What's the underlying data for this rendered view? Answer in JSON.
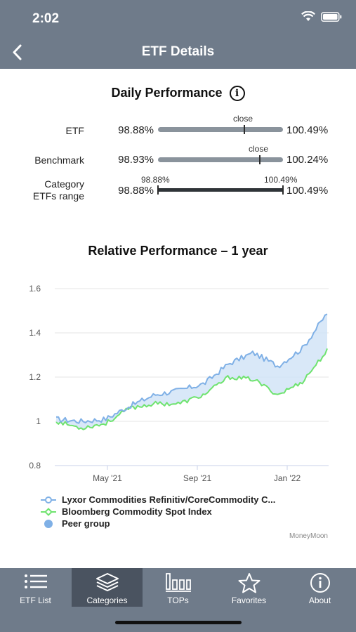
{
  "status_bar": {
    "time": "2:02"
  },
  "nav": {
    "title": "ETF Details",
    "back_icon": "chevron-left-icon"
  },
  "daily": {
    "title": "Daily Performance",
    "info_glyph": "i",
    "rows": [
      {
        "label": "ETF",
        "low": "98.88%",
        "high": "100.49%",
        "marker_label": "close",
        "marker_fraction": 0.69
      },
      {
        "label": "Benchmark",
        "low": "98.93%",
        "high": "100.24%",
        "marker_label": "close",
        "marker_fraction": 0.81
      },
      {
        "label_line1": "Category",
        "label_line2": "ETFs range",
        "low": "98.88%",
        "high": "100.49%",
        "top_low": "98.88%",
        "top_high": "100.49%"
      }
    ]
  },
  "relative": {
    "title": "Relative Performance – 1 year"
  },
  "chart_data": {
    "type": "line",
    "y_ticks": [
      "1.6",
      "1.4",
      "1.2",
      "1",
      "0.8"
    ],
    "x_ticks": [
      "May '21",
      "Sep '21",
      "Jan '22"
    ],
    "ylim": [
      0.8,
      1.6
    ],
    "x": [
      "Mar '21",
      "Apr '21",
      "May '21",
      "Jun '21",
      "Jul '21",
      "Aug '21",
      "Sep '21",
      "Oct '21",
      "Nov '21",
      "Dec '21",
      "Jan '22",
      "Feb '22"
    ],
    "series": [
      {
        "name": "Lyxor Commodities Refinitiv/CoreCommodity C...",
        "color": "#7fb0e6",
        "marker": "circle",
        "values": [
          1.01,
          1.0,
          1.01,
          1.07,
          1.12,
          1.14,
          1.17,
          1.26,
          1.31,
          1.25,
          1.33,
          1.49
        ]
      },
      {
        "name": "Bloomberg Commodity Spot Index",
        "color": "#6fe36f",
        "marker": "diamond",
        "values": [
          1.0,
          0.97,
          0.99,
          1.06,
          1.08,
          1.08,
          1.12,
          1.2,
          1.19,
          1.12,
          1.18,
          1.32
        ]
      }
    ],
    "band": {
      "name": "Peer group",
      "color": "#cfe2f6",
      "marker": "dot"
    },
    "credit": "MoneyMoon"
  },
  "tabs": [
    {
      "label": "ETF List",
      "icon": "list-icon"
    },
    {
      "label": "Categories",
      "icon": "layers-icon",
      "active": true
    },
    {
      "label": "TOPs",
      "icon": "bar-chart-icon"
    },
    {
      "label": "Favorites",
      "icon": "star-icon"
    },
    {
      "label": "About",
      "icon": "info-icon"
    }
  ]
}
